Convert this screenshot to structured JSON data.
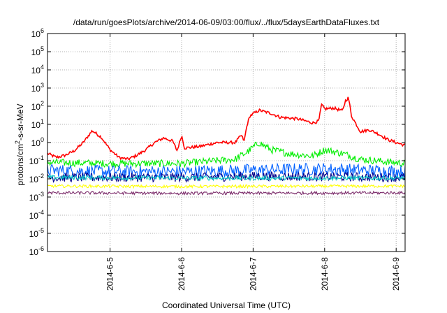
{
  "chart_data": {
    "type": "line",
    "title": "/data/run/goesPlots/archive/2014-06-09/03:00/flux/../flux/5daysEarthDataFluxes.txt",
    "xlabel": "Coordinated Universal Time (UTC)",
    "ylabel": "protons/cm2-s-sr-MeV",
    "ylabel_parts": {
      "pre": "protons/cm",
      "sup": "2",
      "post": "-s-sr-MeV"
    },
    "y_scale": "log",
    "ylim": [
      1e-06,
      1000000.0
    ],
    "y_ticks": [
      {
        "value": 1e-06,
        "base": "10",
        "exp": "-6"
      },
      {
        "value": 1e-05,
        "base": "10",
        "exp": "-5"
      },
      {
        "value": 0.0001,
        "base": "10",
        "exp": "-4"
      },
      {
        "value": 0.001,
        "base": "10",
        "exp": "-3"
      },
      {
        "value": 0.01,
        "base": "10",
        "exp": "-2"
      },
      {
        "value": 0.1,
        "base": "10",
        "exp": "-1"
      },
      {
        "value": 1,
        "base": "10",
        "exp": "0"
      },
      {
        "value": 10,
        "base": "10",
        "exp": "1"
      },
      {
        "value": 100,
        "base": "10",
        "exp": "2"
      },
      {
        "value": 1000,
        "base": "10",
        "exp": "3"
      },
      {
        "value": 10000,
        "base": "10",
        "exp": "4"
      },
      {
        "value": 100000,
        "base": "10",
        "exp": "5"
      },
      {
        "value": 1000000,
        "base": "10",
        "exp": "6"
      }
    ],
    "x_axis_type": "date",
    "xlim": [
      "2014-06-04T03:00",
      "2014-06-09T03:00"
    ],
    "x_ticks": [
      "2014-6-5",
      "2014-6-6",
      "2014-6-7",
      "2014-6-8",
      "2014-6-9"
    ],
    "x_tick_dates": [
      "2014-06-05T00:00",
      "2014-06-06T00:00",
      "2014-06-07T00:00",
      "2014-06-08T00:00",
      "2014-06-09T00:00"
    ],
    "grid": true,
    "legend": "none",
    "series": [
      {
        "color": "#ff0000",
        "noise": 0.08,
        "points": [
          [
            "2014-06-04T03:00",
            0.25
          ],
          [
            "2014-06-04T06:00",
            0.15
          ],
          [
            "2014-06-04T09:00",
            0.2
          ],
          [
            "2014-06-04T12:00",
            0.35
          ],
          [
            "2014-06-04T15:00",
            1.0
          ],
          [
            "2014-06-04T18:00",
            4.5
          ],
          [
            "2014-06-04T21:00",
            2.0
          ],
          [
            "2014-06-05T00:00",
            0.4
          ],
          [
            "2014-06-05T03:00",
            0.15
          ],
          [
            "2014-06-05T06:00",
            0.12
          ],
          [
            "2014-06-05T09:00",
            0.2
          ],
          [
            "2014-06-05T12:00",
            0.4
          ],
          [
            "2014-06-05T15:00",
            1.0
          ],
          [
            "2014-06-05T18:00",
            1.8
          ],
          [
            "2014-06-05T21:00",
            1.2
          ],
          [
            "2014-06-05T22:30",
            0.35
          ],
          [
            "2014-06-06T00:00",
            2.5
          ],
          [
            "2014-06-06T01:00",
            0.5
          ],
          [
            "2014-06-06T06:00",
            0.6
          ],
          [
            "2014-06-06T12:00",
            1.0
          ],
          [
            "2014-06-06T18:00",
            1.0
          ],
          [
            "2014-06-06T20:00",
            2.5
          ],
          [
            "2014-06-06T21:00",
            1.2
          ],
          [
            "2014-06-06T22:00",
            10
          ],
          [
            "2014-06-06T23:00",
            30
          ],
          [
            "2014-06-07T02:00",
            60
          ],
          [
            "2014-06-07T06:00",
            40
          ],
          [
            "2014-06-07T09:00",
            25
          ],
          [
            "2014-06-07T15:00",
            20
          ],
          [
            "2014-06-07T20:00",
            12
          ],
          [
            "2014-06-07T22:00",
            15
          ],
          [
            "2014-06-07T23:00",
            120
          ],
          [
            "2014-06-08T00:00",
            70
          ],
          [
            "2014-06-08T03:00",
            80
          ],
          [
            "2014-06-08T06:00",
            55
          ],
          [
            "2014-06-08T07:00",
            200
          ],
          [
            "2014-06-08T08:00",
            300
          ],
          [
            "2014-06-08T09:00",
            30
          ],
          [
            "2014-06-08T10:00",
            15
          ],
          [
            "2014-06-08T12:00",
            4
          ],
          [
            "2014-06-08T15:00",
            5
          ],
          [
            "2014-06-08T18:00",
            3
          ],
          [
            "2014-06-08T21:00",
            1.5
          ],
          [
            "2014-06-09T00:00",
            1.0
          ],
          [
            "2014-06-09T03:00",
            0.7
          ]
        ]
      },
      {
        "color": "#00ee00",
        "noise": 0.2,
        "points": [
          [
            "2014-06-04T03:00",
            0.08
          ],
          [
            "2014-06-05T00:00",
            0.07
          ],
          [
            "2014-06-06T00:00",
            0.07
          ],
          [
            "2014-06-06T18:00",
            0.12
          ],
          [
            "2014-06-06T22:00",
            0.3
          ],
          [
            "2014-06-07T02:00",
            1.0
          ],
          [
            "2014-06-07T06:00",
            0.4
          ],
          [
            "2014-06-07T12:00",
            0.25
          ],
          [
            "2014-06-07T20:00",
            0.18
          ],
          [
            "2014-06-08T00:00",
            0.4
          ],
          [
            "2014-06-08T06:00",
            0.25
          ],
          [
            "2014-06-08T12:00",
            0.12
          ],
          [
            "2014-06-09T03:00",
            0.07
          ]
        ]
      },
      {
        "color": "#0060ff",
        "noise": 0.35,
        "points": [
          [
            "2014-06-04T03:00",
            0.03
          ],
          [
            "2014-06-05T00:00",
            0.025
          ],
          [
            "2014-06-06T00:00",
            0.025
          ],
          [
            "2014-06-07T00:00",
            0.03
          ],
          [
            "2014-06-08T00:00",
            0.035
          ],
          [
            "2014-06-09T03:00",
            0.025
          ]
        ]
      },
      {
        "color": "#00008b",
        "noise": 0.25,
        "points": [
          [
            "2014-06-04T03:00",
            0.012
          ],
          [
            "2014-06-06T00:00",
            0.012
          ],
          [
            "2014-06-07T00:00",
            0.014
          ],
          [
            "2014-06-09T03:00",
            0.012
          ]
        ]
      },
      {
        "color": "#00c8c8",
        "noise": 0.12,
        "points": [
          [
            "2014-06-04T03:00",
            0.012
          ],
          [
            "2014-06-06T00:00",
            0.011
          ],
          [
            "2014-06-09T03:00",
            0.011
          ]
        ]
      },
      {
        "color": "#ffff00",
        "noise": 0.08,
        "points": [
          [
            "2014-06-04T03:00",
            0.004
          ],
          [
            "2014-06-06T00:00",
            0.0038
          ],
          [
            "2014-06-09T03:00",
            0.004
          ]
        ]
      },
      {
        "color": "#7b2b6a",
        "noise": 0.08,
        "points": [
          [
            "2014-06-04T03:00",
            0.0017
          ],
          [
            "2014-06-06T00:00",
            0.0016
          ],
          [
            "2014-06-09T03:00",
            0.0017
          ]
        ]
      }
    ]
  }
}
